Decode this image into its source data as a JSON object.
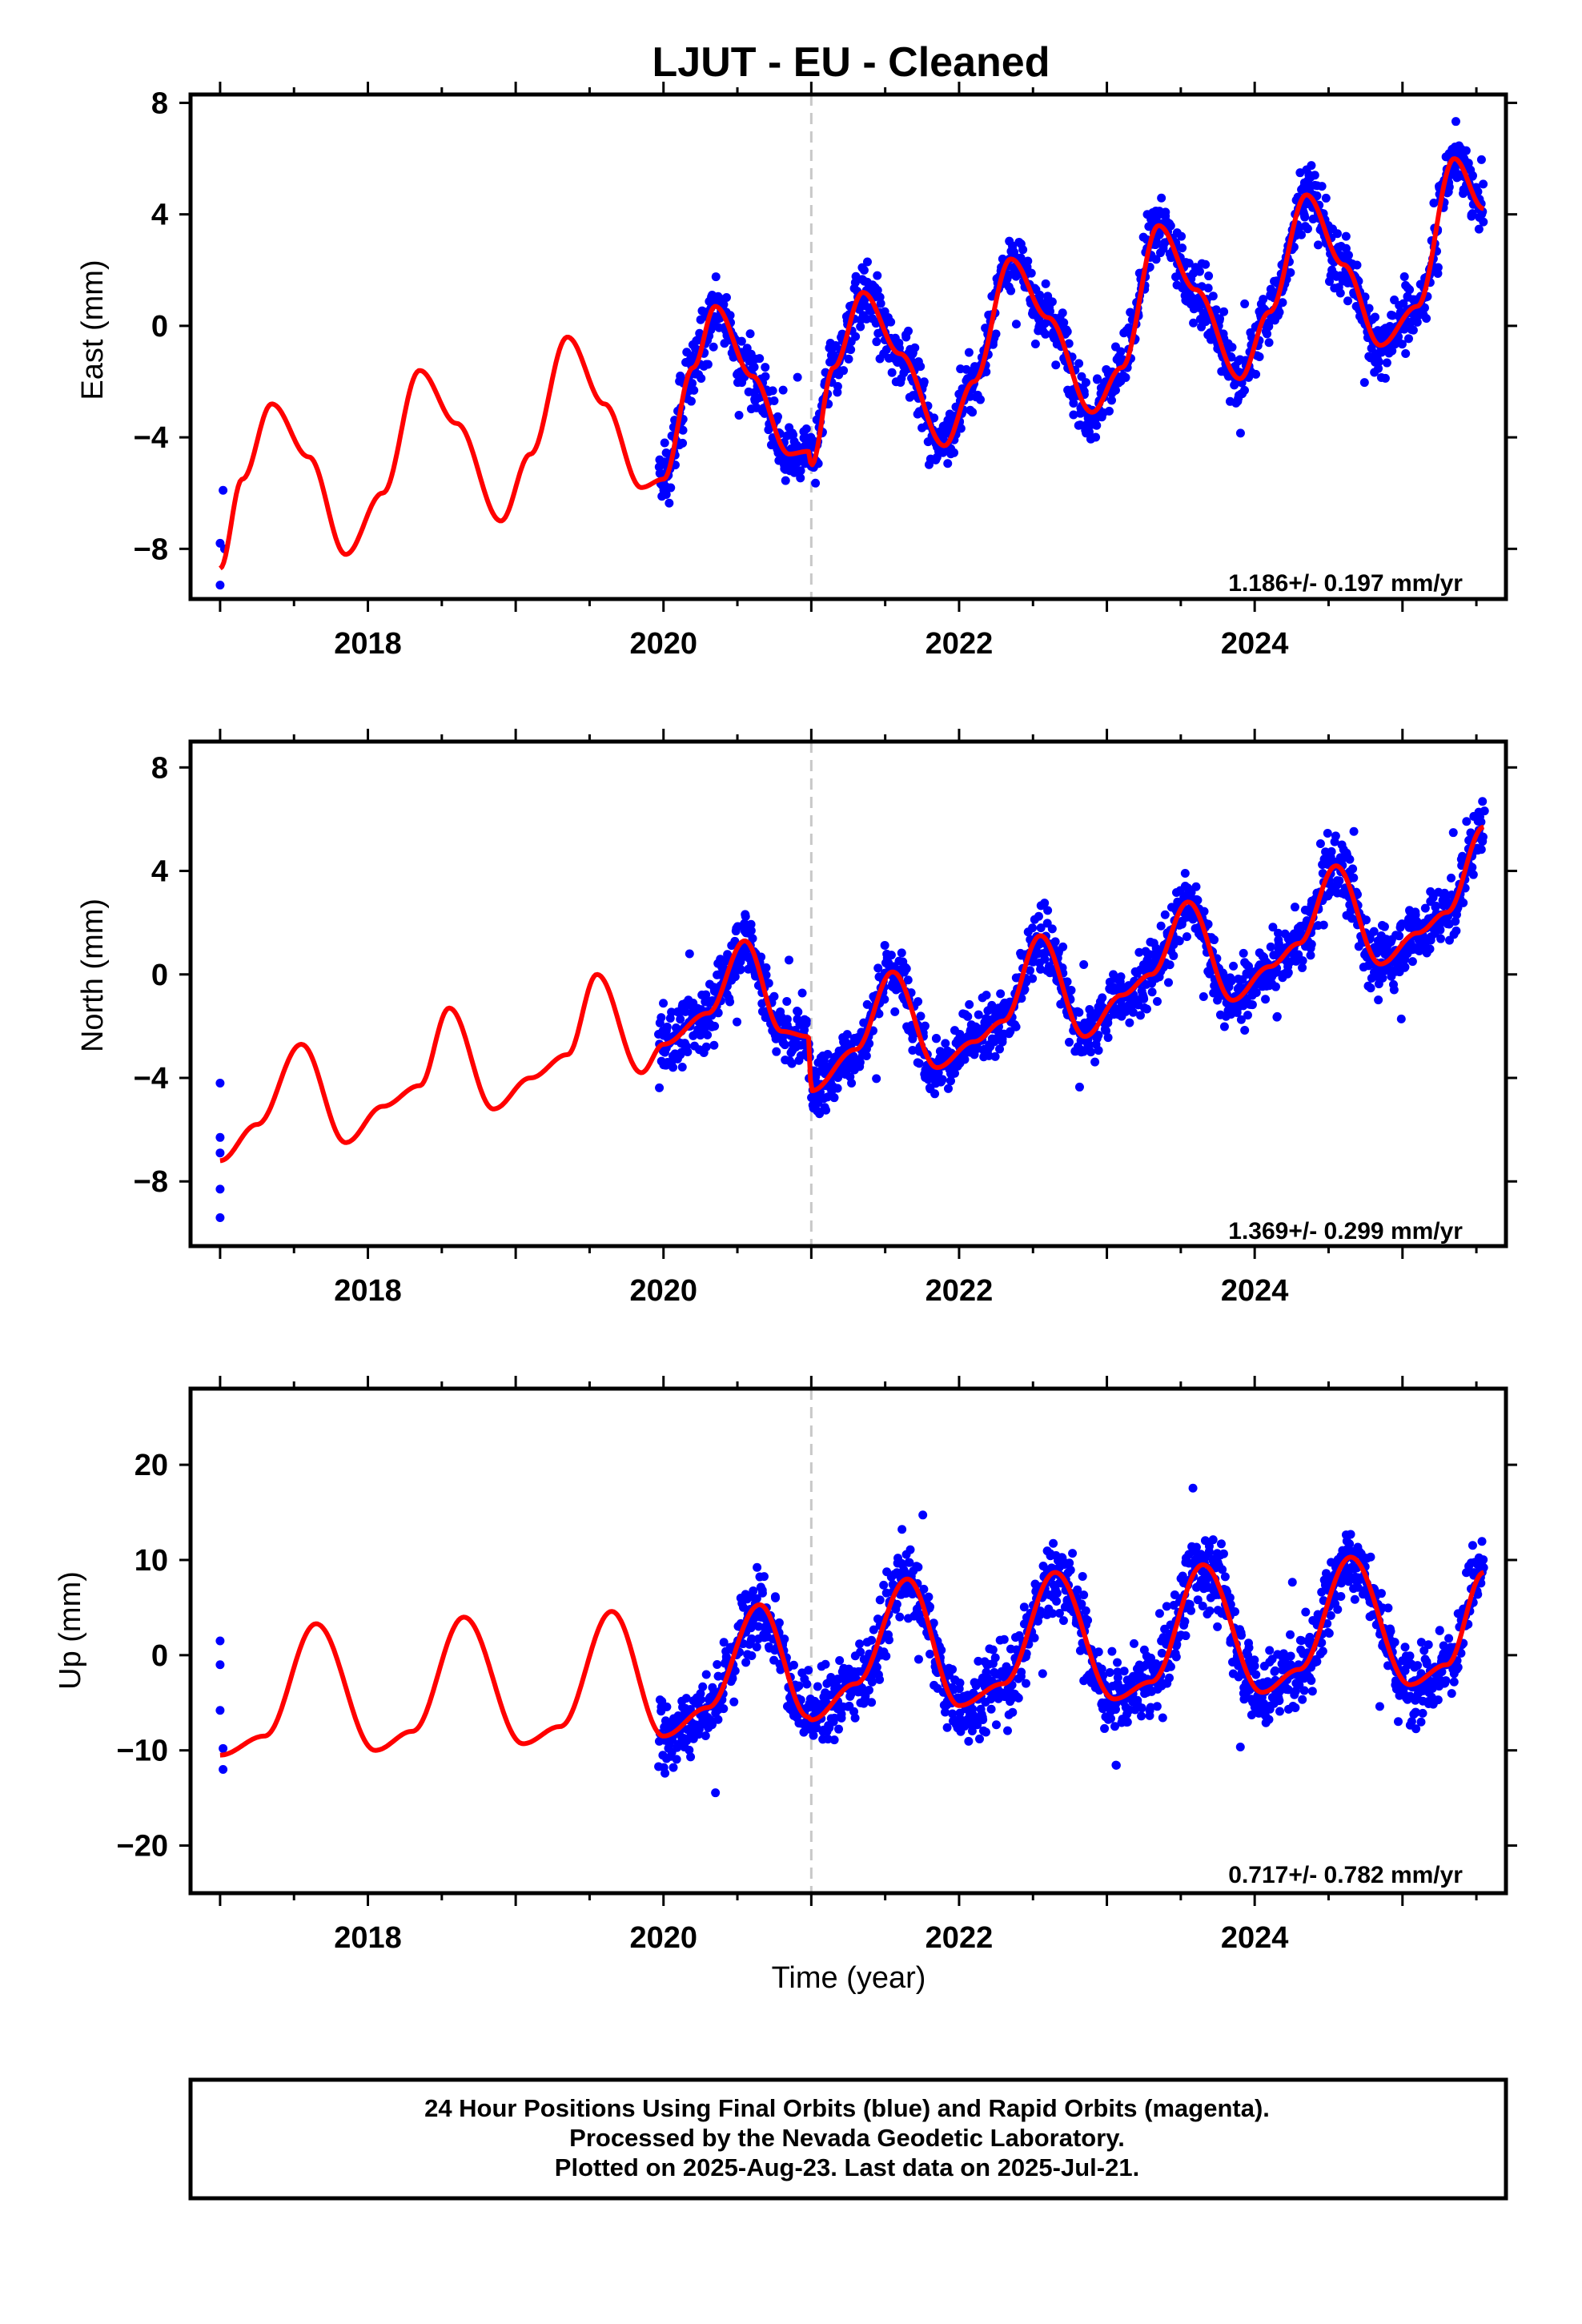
{
  "title": "LJUT  - EU - Cleaned",
  "xlabel": "Time (year)",
  "xticks": [
    2018,
    2020,
    2022,
    2024
  ],
  "caption": [
    "24 Hour Positions Using Final Orbits (blue) and Rapid Orbits (magenta).",
    "Processed by the Nevada Geodetic Laboratory.",
    "Plotted on 2025-Aug-23. Last data on 2025-Jul-21."
  ],
  "colors": {
    "data": "#0000ff",
    "model": "#ff0000",
    "marker": "#c8c8c8",
    "frame": "#000000"
  },
  "chart_data": [
    {
      "type": "scatter",
      "ylabel": "East (mm)",
      "rate": "1.186+/- 0.197 mm/yr",
      "xlim": [
        2016.8,
        2025.7
      ],
      "ylim": [
        -9.8,
        8.3
      ],
      "yticks": [
        8,
        4,
        0,
        -4,
        -8
      ],
      "yticklabels": [
        "8",
        "4",
        "0",
        "−4",
        "−8"
      ],
      "break_year": 2021.0,
      "data_start": 2019.97,
      "data_end": 2025.55,
      "early_points": [
        [
          2017.0,
          -7.8
        ],
        [
          2017.0,
          -9.3
        ],
        [
          2017.02,
          -5.9
        ],
        [
          2017.03,
          -8.0
        ]
      ],
      "model_curve": [
        [
          2017.0,
          -8.7
        ],
        [
          2017.15,
          -5.5
        ],
        [
          2017.35,
          -2.8
        ],
        [
          2017.6,
          -4.7
        ],
        [
          2017.85,
          -8.2
        ],
        [
          2018.1,
          -6.0
        ],
        [
          2018.35,
          -1.6
        ],
        [
          2018.6,
          -3.5
        ],
        [
          2018.9,
          -7.0
        ],
        [
          2019.1,
          -4.6
        ],
        [
          2019.35,
          -0.4
        ],
        [
          2019.6,
          -2.8
        ],
        [
          2019.85,
          -5.8
        ],
        [
          2020.0,
          -5.5
        ],
        [
          2020.2,
          -1.5
        ],
        [
          2020.35,
          0.7
        ],
        [
          2020.6,
          -1.8
        ],
        [
          2020.85,
          -4.6
        ],
        [
          2020.98,
          -4.5
        ],
        [
          2021.0,
          -5.0
        ],
        [
          2021.15,
          -1.5
        ],
        [
          2021.35,
          1.2
        ],
        [
          2021.6,
          -1.0
        ],
        [
          2021.9,
          -4.3
        ],
        [
          2022.1,
          -2.0
        ],
        [
          2022.35,
          2.4
        ],
        [
          2022.6,
          0.3
        ],
        [
          2022.9,
          -3.1
        ],
        [
          2023.1,
          -1.5
        ],
        [
          2023.35,
          3.6
        ],
        [
          2023.6,
          1.3
        ],
        [
          2023.9,
          -1.9
        ],
        [
          2024.1,
          0.5
        ],
        [
          2024.35,
          4.7
        ],
        [
          2024.6,
          2.2
        ],
        [
          2024.85,
          -0.7
        ],
        [
          2025.1,
          0.7
        ],
        [
          2025.35,
          6.0
        ],
        [
          2025.55,
          4.2
        ]
      ],
      "trend": 1.186,
      "seasonal_amp": 3.0,
      "series_offset": -5.0,
      "noise": 1.4
    },
    {
      "type": "scatter",
      "ylabel": "North (mm)",
      "rate": "1.369+/- 0.299 mm/yr",
      "xlim": [
        2016.8,
        2025.7
      ],
      "ylim": [
        -10.5,
        9.0
      ],
      "yticks": [
        8,
        4,
        0,
        -4,
        -8
      ],
      "yticklabels": [
        "8",
        "4",
        "0",
        "−4",
        "−8"
      ],
      "break_year": 2021.0,
      "data_start": 2019.97,
      "data_end": 2025.55,
      "early_points": [
        [
          2017.0,
          -4.2
        ],
        [
          2017.0,
          -6.3
        ],
        [
          2017.0,
          -6.9
        ],
        [
          2017.0,
          -8.3
        ],
        [
          2017.0,
          -9.4
        ]
      ],
      "model_curve": [
        [
          2017.0,
          -7.2
        ],
        [
          2017.25,
          -5.8
        ],
        [
          2017.55,
          -2.7
        ],
        [
          2017.85,
          -6.5
        ],
        [
          2018.1,
          -5.1
        ],
        [
          2018.35,
          -4.3
        ],
        [
          2018.55,
          -1.3
        ],
        [
          2018.85,
          -5.2
        ],
        [
          2019.1,
          -4.0
        ],
        [
          2019.35,
          -3.1
        ],
        [
          2019.55,
          0.0
        ],
        [
          2019.85,
          -3.8
        ],
        [
          2020.0,
          -2.7
        ],
        [
          2020.3,
          -1.5
        ],
        [
          2020.55,
          1.3
        ],
        [
          2020.8,
          -2.2
        ],
        [
          2020.98,
          -2.4
        ],
        [
          2021.0,
          -4.5
        ],
        [
          2021.3,
          -2.9
        ],
        [
          2021.55,
          0.1
        ],
        [
          2021.85,
          -3.6
        ],
        [
          2022.1,
          -2.6
        ],
        [
          2022.3,
          -1.8
        ],
        [
          2022.55,
          1.5
        ],
        [
          2022.85,
          -2.4
        ],
        [
          2023.1,
          -0.8
        ],
        [
          2023.3,
          0.0
        ],
        [
          2023.55,
          2.8
        ],
        [
          2023.85,
          -1.0
        ],
        [
          2024.1,
          0.3
        ],
        [
          2024.3,
          1.2
        ],
        [
          2024.55,
          4.2
        ],
        [
          2024.85,
          0.4
        ],
        [
          2025.1,
          1.6
        ],
        [
          2025.3,
          2.4
        ],
        [
          2025.55,
          5.7
        ]
      ],
      "trend": 1.369,
      "seasonal_amp": 2.0,
      "series_offset": -3.5,
      "noise": 1.5
    },
    {
      "type": "scatter",
      "ylabel": "Up (mm)",
      "rate": "0.717+/- 0.782 mm/yr",
      "xlim": [
        2016.8,
        2025.7
      ],
      "ylim": [
        -25,
        28
      ],
      "yticks": [
        20,
        10,
        0,
        -10,
        -20
      ],
      "yticklabels": [
        "20",
        "10",
        "0",
        "−10",
        "−20"
      ],
      "break_year": 2021.0,
      "data_start": 2019.97,
      "data_end": 2025.55,
      "early_points": [
        [
          2017.0,
          1.5
        ],
        [
          2017.0,
          -1.0
        ],
        [
          2017.0,
          -5.8
        ],
        [
          2017.02,
          -9.8
        ],
        [
          2017.02,
          -12.0
        ]
      ],
      "model_curve": [
        [
          2017.0,
          -10.5
        ],
        [
          2017.3,
          -8.5
        ],
        [
          2017.65,
          3.3
        ],
        [
          2018.05,
          -10.0
        ],
        [
          2018.3,
          -8.0
        ],
        [
          2018.65,
          4.0
        ],
        [
          2019.05,
          -9.3
        ],
        [
          2019.3,
          -7.5
        ],
        [
          2019.65,
          4.6
        ],
        [
          2020.0,
          -8.5
        ],
        [
          2020.3,
          -5.5
        ],
        [
          2020.65,
          5.3
        ],
        [
          2020.98,
          -6.5
        ],
        [
          2021.0,
          -6.8
        ],
        [
          2021.3,
          -3.0
        ],
        [
          2021.65,
          8.0
        ],
        [
          2022.0,
          -5.3
        ],
        [
          2022.3,
          -3.0
        ],
        [
          2022.65,
          8.7
        ],
        [
          2023.05,
          -4.6
        ],
        [
          2023.3,
          -2.8
        ],
        [
          2023.65,
          9.5
        ],
        [
          2024.05,
          -3.9
        ],
        [
          2024.3,
          -1.5
        ],
        [
          2024.65,
          10.3
        ],
        [
          2025.05,
          -3.1
        ],
        [
          2025.3,
          -1.0
        ],
        [
          2025.55,
          8.7
        ]
      ],
      "trend": 0.717,
      "seasonal_amp": 7.0,
      "series_offset": -2.0,
      "noise": 5.0
    }
  ]
}
